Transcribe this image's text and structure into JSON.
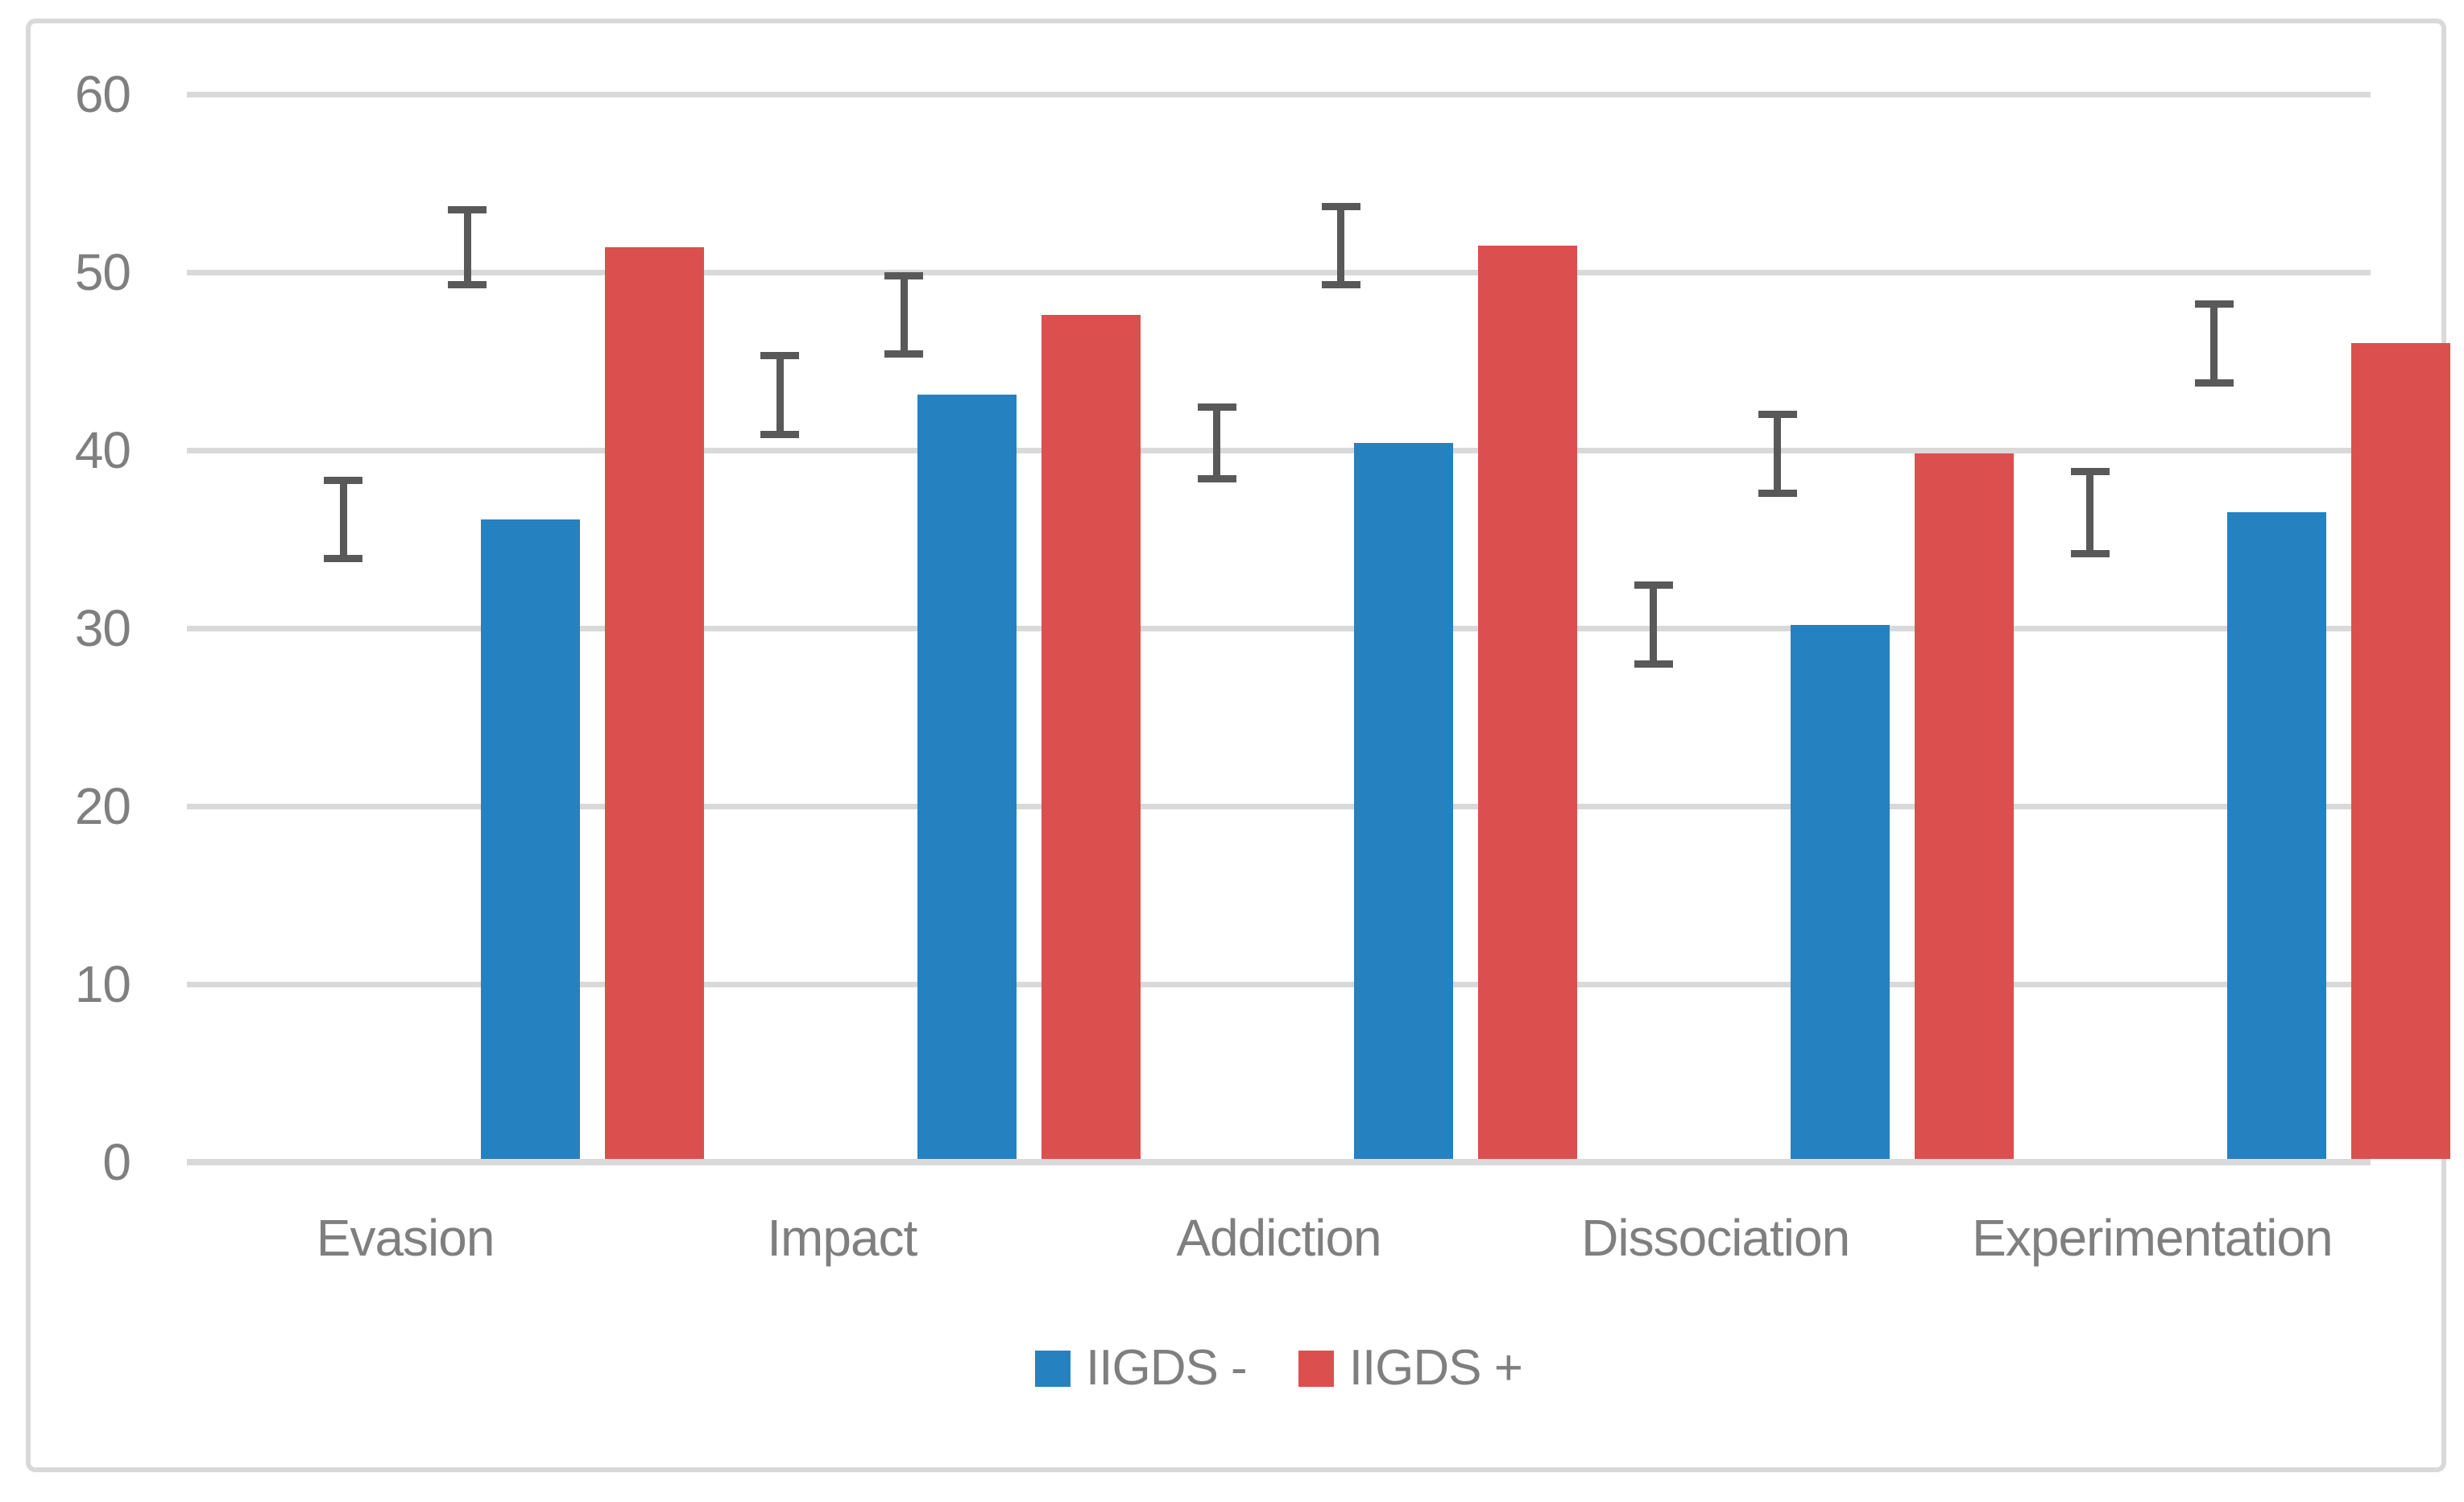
{
  "chart_data": {
    "type": "bar",
    "title": "",
    "xlabel": "",
    "ylabel": "",
    "categories": [
      "Evasion",
      "Impact",
      "Addiction",
      "Dissociation",
      "Experimentation"
    ],
    "series": [
      {
        "name": "IIGDS -",
        "color": "#2681C1",
        "values": [
          36.1,
          43.1,
          40.4,
          30.2,
          36.5
        ],
        "error_bars": [
          2.2,
          2.2,
          2.0,
          2.2,
          2.3
        ]
      },
      {
        "name": "IIGDS +",
        "color": "#DB4F4F",
        "values": [
          51.4,
          47.6,
          51.5,
          39.8,
          46.0
        ],
        "error_bars": [
          2.1,
          2.2,
          2.2,
          2.2,
          2.2
        ]
      }
    ],
    "ylim": [
      0,
      60
    ],
    "yticks": [
      0,
      10,
      20,
      30,
      40,
      50,
      60
    ],
    "grid": true,
    "legend_position": "bottom"
  },
  "colors": {
    "series_minus": "#2681C1",
    "series_plus": "#DB4F4F",
    "error_bar": "#595959",
    "gridline": "#D9D9D9",
    "axis_text": "#7F7F7F",
    "frame_border": "#D9D9D9",
    "background": "#FFFFFF"
  },
  "legend": {
    "items": [
      {
        "label": "IIGDS -"
      },
      {
        "label": "IIGDS +"
      }
    ]
  }
}
